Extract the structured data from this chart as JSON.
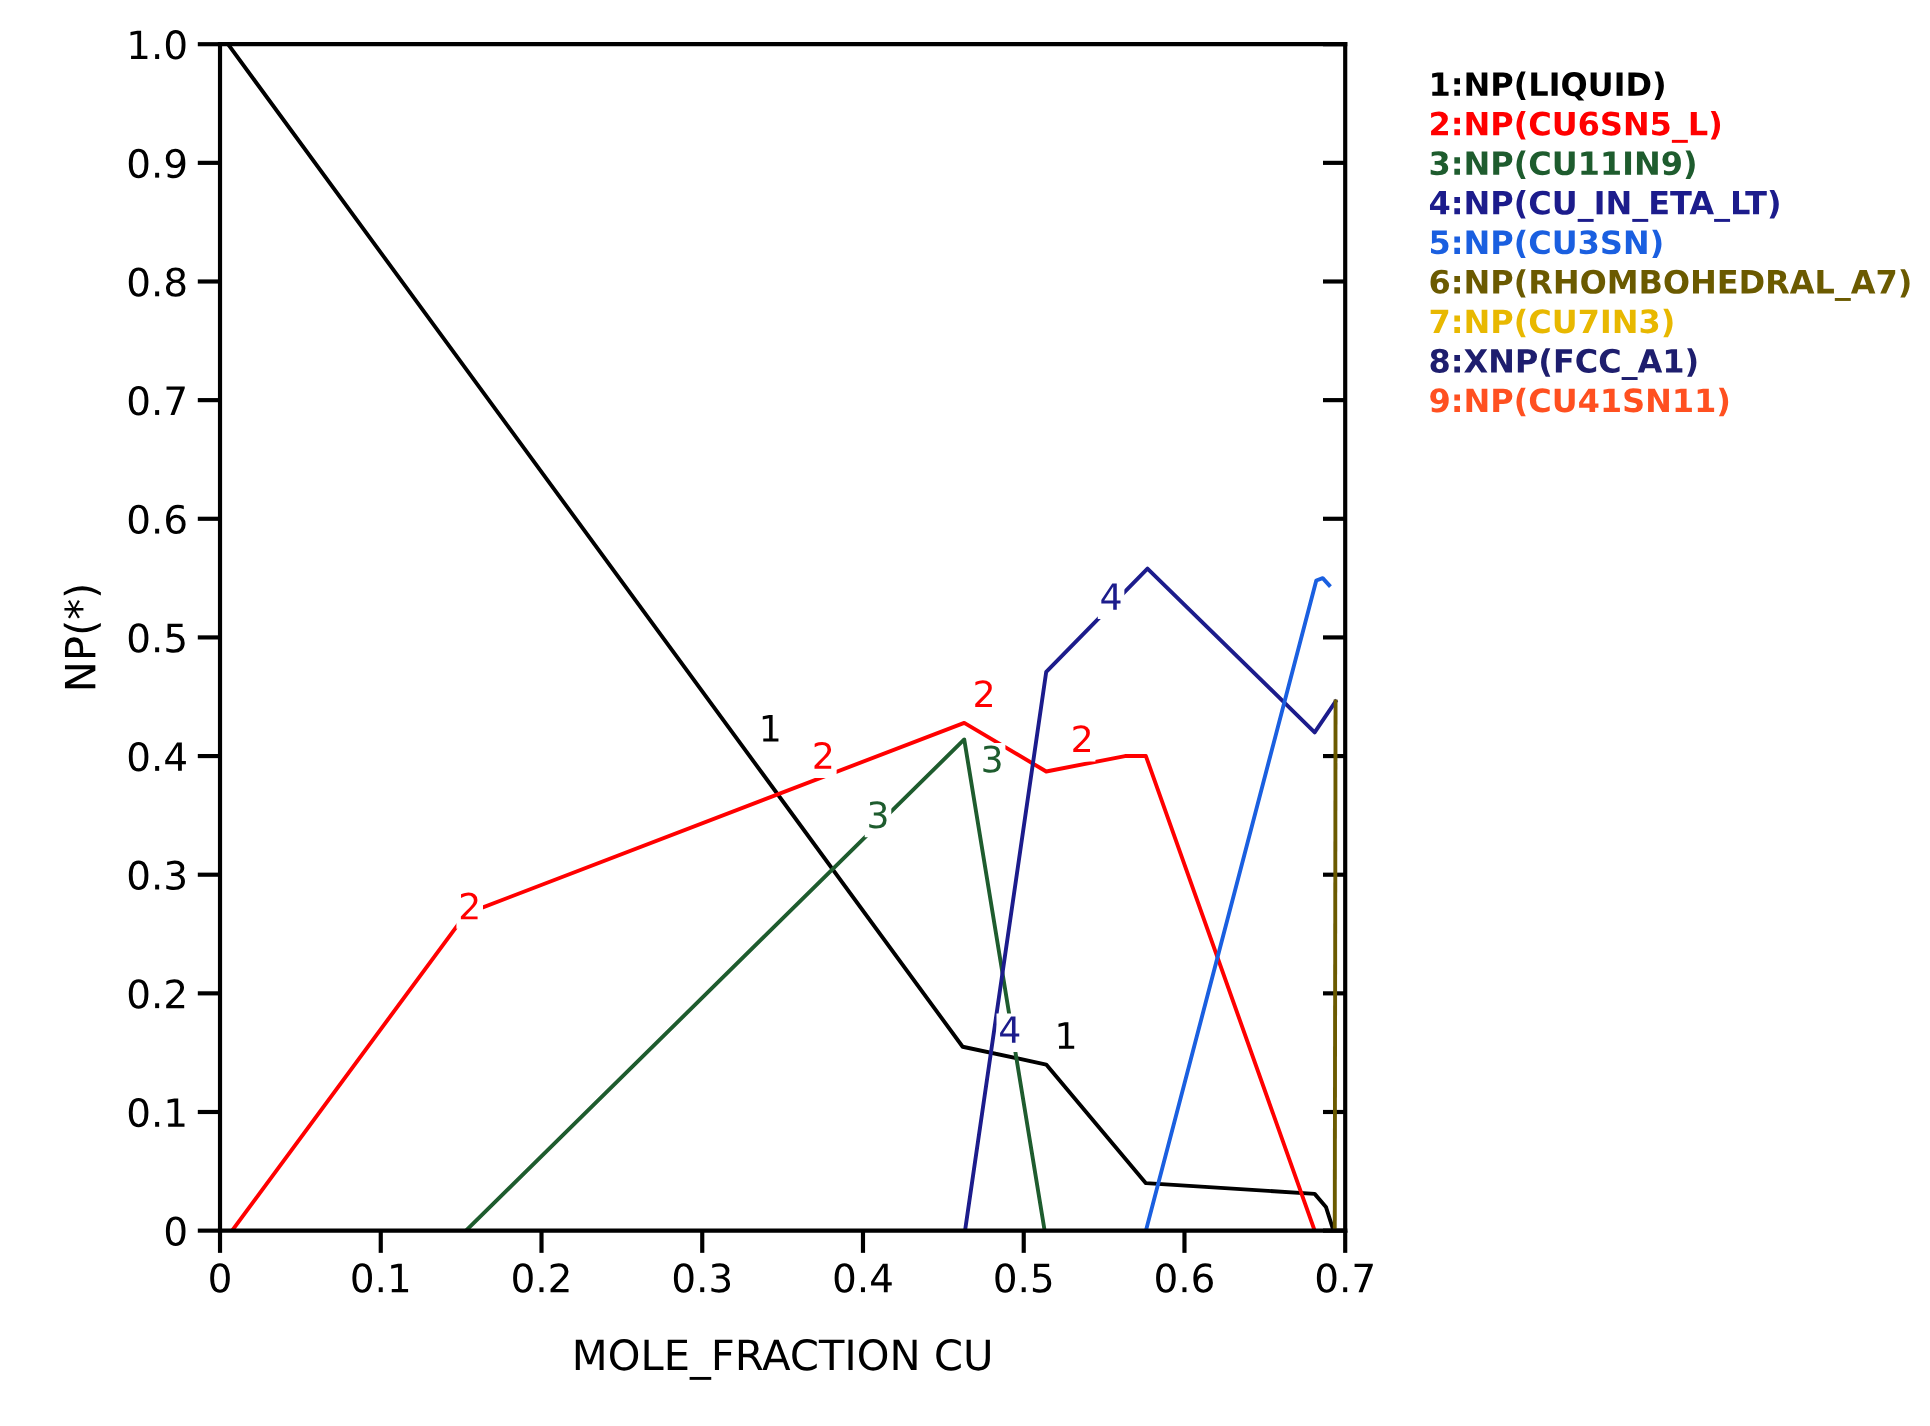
{
  "chart_data": {
    "type": "line",
    "xlabel": "MOLE_FRACTION CU",
    "ylabel": "NP(*)",
    "xlim": [
      0,
      0.7
    ],
    "xticks": [
      0,
      0.1,
      0.2,
      0.3,
      0.4,
      0.5,
      0.6,
      0.7
    ],
    "ylim": [
      0,
      1.0
    ],
    "yticks": [
      0,
      0.1,
      0.2,
      0.3,
      0.4,
      0.5,
      0.6,
      0.7,
      0.8,
      0.9,
      {
        "value": 1.0,
        "label": "1.0"
      }
    ],
    "grid": false,
    "legend": "right",
    "marker": "none",
    "line_style": "solid",
    "series": [
      {
        "name": "1:NP(LIQUID)",
        "color": "#000000",
        "x": [
          0.005,
          0.462,
          0.514,
          0.576,
          0.681,
          0.688,
          0.692
        ],
        "values": [
          1.0,
          0.155,
          0.14,
          0.04,
          0.031,
          0.02,
          0.003
        ]
      },
      {
        "name": "2:NP(CU6SN5_L)",
        "color": "#ff0000",
        "x": [
          0.0075,
          0.153,
          0.463,
          0.514,
          0.563,
          0.576,
          0.681
        ],
        "values": [
          0,
          0.267,
          0.428,
          0.387,
          0.4,
          0.4,
          0
        ]
      },
      {
        "name": "3:NP(CU11IN9)",
        "color": "#1e5c2e",
        "x": [
          0.153,
          0.463,
          0.513
        ],
        "values": [
          0,
          0.414,
          0
        ]
      },
      {
        "name": "4:NP(CU_IN_ETA_LT)",
        "color": "#1c1c8c",
        "x": [
          0.4635,
          0.514,
          0.577,
          0.681,
          0.694
        ],
        "values": [
          0,
          0.471,
          0.558,
          0.42,
          0.446
        ]
      },
      {
        "name": "5:NP(CU3SN)",
        "color": "#1a5fe0",
        "x": [
          0.576,
          0.682,
          0.686,
          0.69
        ],
        "values": [
          0,
          0.548,
          0.55,
          0.544
        ]
      },
      {
        "name": "6:NP(RHOMBOHEDRAL_A7)",
        "color": "#6b5a00",
        "x": [
          0.6935,
          0.694
        ],
        "values": [
          0,
          0.446
        ]
      },
      {
        "name": "7:NP(CU7IN3)",
        "color": "#e8b800"
      },
      {
        "name": "8:XNP(FCC_A1)",
        "color": "#1e1e6e"
      },
      {
        "name": "9:NP(CU41SN11)",
        "color": "#ff5020"
      }
    ],
    "annotations": [
      {
        "text": "1",
        "x": 0.33,
        "y": 0.399
      },
      {
        "text": "1",
        "x": 0.514,
        "y": 0.14
      },
      {
        "text": "2",
        "x": 0.143,
        "y": 0.249
      },
      {
        "text": "2",
        "x": 0.363,
        "y": 0.376
      },
      {
        "text": "2",
        "x": 0.463,
        "y": 0.428
      },
      {
        "text": "2",
        "x": 0.524,
        "y": 0.39
      },
      {
        "text": "3",
        "x": 0.397,
        "y": 0.326
      },
      {
        "text": "3",
        "x": 0.468,
        "y": 0.373
      },
      {
        "text": "4",
        "x": 0.542,
        "y": 0.51
      },
      {
        "text": "4",
        "x": 0.479,
        "y": 0.145
      }
    ]
  }
}
